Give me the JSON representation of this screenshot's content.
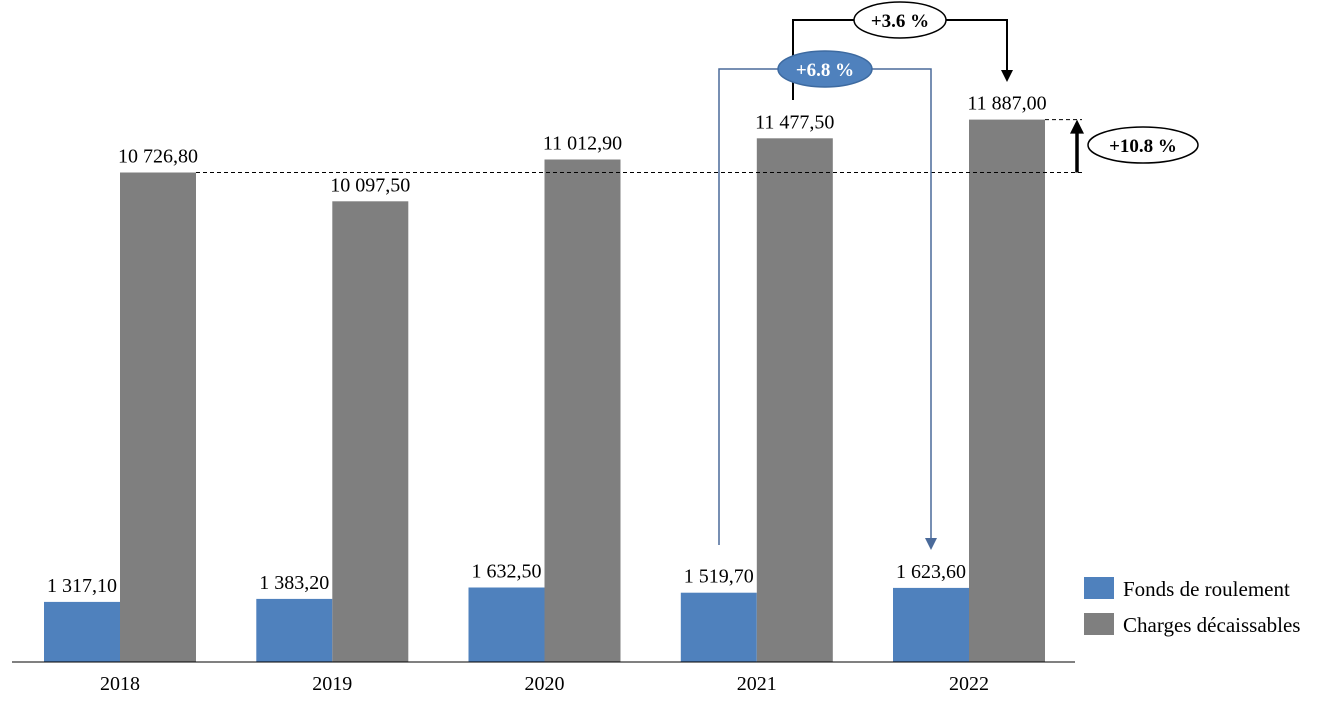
{
  "chart_data": {
    "type": "bar",
    "categories": [
      "2018",
      "2019",
      "2020",
      "2021",
      "2022"
    ],
    "series": [
      {
        "name": "Fonds de roulement",
        "color": "#4f81bd",
        "values": [
          1317.1,
          1383.2,
          1632.5,
          1519.7,
          1623.6
        ],
        "labels": [
          "1 317,10",
          "1 383,20",
          "1 632,50",
          "1 519,70",
          "1 623,60"
        ]
      },
      {
        "name": "Charges décaissables",
        "color": "#7f7f7f",
        "values": [
          10726.8,
          10097.5,
          11012.9,
          11477.5,
          11887.0
        ],
        "labels": [
          "10 726,80",
          "10 097,50",
          "11 012,90",
          "11 477,50",
          "11 887,00"
        ]
      }
    ],
    "ylim": [
      0,
      13500
    ],
    "grid": false,
    "legend_position": "bottom-right",
    "annotations": [
      {
        "text": "+3.6 %",
        "from": "Charges décaissables 2021",
        "to": "Charges décaissables 2022",
        "style": "white-ellipse"
      },
      {
        "text": "+6.8 %",
        "from": "Fonds de roulement 2021",
        "to": "Fonds de roulement 2022",
        "style": "blue-ellipse"
      },
      {
        "text": "+10.8 %",
        "from": "Charges décaissables 2018",
        "to": "Charges décaissables 2022",
        "style": "white-ellipse"
      }
    ]
  }
}
